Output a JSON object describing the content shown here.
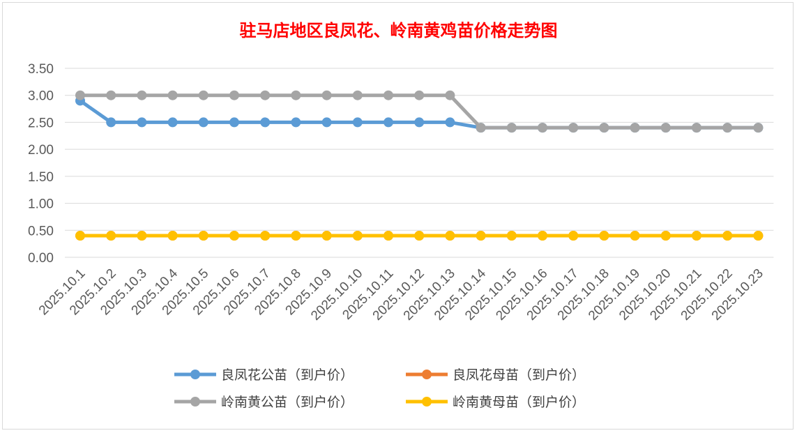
{
  "chart_data": {
    "type": "line",
    "title": "驻马店地区良凤花、岭南黄鸡苗价格走势图",
    "xlabel": "",
    "ylabel": "",
    "ylim": [
      0,
      3.5
    ],
    "yticks": [
      "0.00",
      "0.50",
      "1.00",
      "1.50",
      "2.00",
      "2.50",
      "3.00",
      "3.50"
    ],
    "grid": true,
    "legend": "bottom",
    "categories": [
      "2025.10.1",
      "2025.10.2",
      "2025.10.3",
      "2025.10.4",
      "2025.10.5",
      "2025.10.6",
      "2025.10.7",
      "2025.10.8",
      "2025.10.9",
      "2025.10.10",
      "2025.10.11",
      "2025.10.12",
      "2025.10.13",
      "2025.10.14",
      "2025.10.15",
      "2025.10.16",
      "2025.10.17",
      "2025.10.18",
      "2025.10.19",
      "2025.10.20",
      "2025.10.21",
      "2025.10.22",
      "2025.10.23"
    ],
    "series": [
      {
        "name": "良凤花公苗（到户价）",
        "color": "#5b9bd5",
        "values": [
          2.9,
          2.5,
          2.5,
          2.5,
          2.5,
          2.5,
          2.5,
          2.5,
          2.5,
          2.5,
          2.5,
          2.5,
          2.5,
          2.4,
          2.4,
          2.4,
          2.4,
          2.4,
          2.4,
          2.4,
          2.4,
          2.4,
          2.4
        ]
      },
      {
        "name": "良凤花母苗（到户价）",
        "color": "#ed7d31",
        "values": [
          0.4,
          0.4,
          0.4,
          0.4,
          0.4,
          0.4,
          0.4,
          0.4,
          0.4,
          0.4,
          0.4,
          0.4,
          0.4,
          0.4,
          0.4,
          0.4,
          0.4,
          0.4,
          0.4,
          0.4,
          0.4,
          0.4,
          0.4
        ]
      },
      {
        "name": "岭南黄公苗（到户价）",
        "color": "#a5a5a5",
        "values": [
          3.0,
          3.0,
          3.0,
          3.0,
          3.0,
          3.0,
          3.0,
          3.0,
          3.0,
          3.0,
          3.0,
          3.0,
          3.0,
          2.4,
          2.4,
          2.4,
          2.4,
          2.4,
          2.4,
          2.4,
          2.4,
          2.4,
          2.4
        ]
      },
      {
        "name": "岭南黄母苗（到户价）",
        "color": "#ffc000",
        "values": [
          0.4,
          0.4,
          0.4,
          0.4,
          0.4,
          0.4,
          0.4,
          0.4,
          0.4,
          0.4,
          0.4,
          0.4,
          0.4,
          0.4,
          0.4,
          0.4,
          0.4,
          0.4,
          0.4,
          0.4,
          0.4,
          0.4,
          0.4
        ]
      }
    ]
  }
}
